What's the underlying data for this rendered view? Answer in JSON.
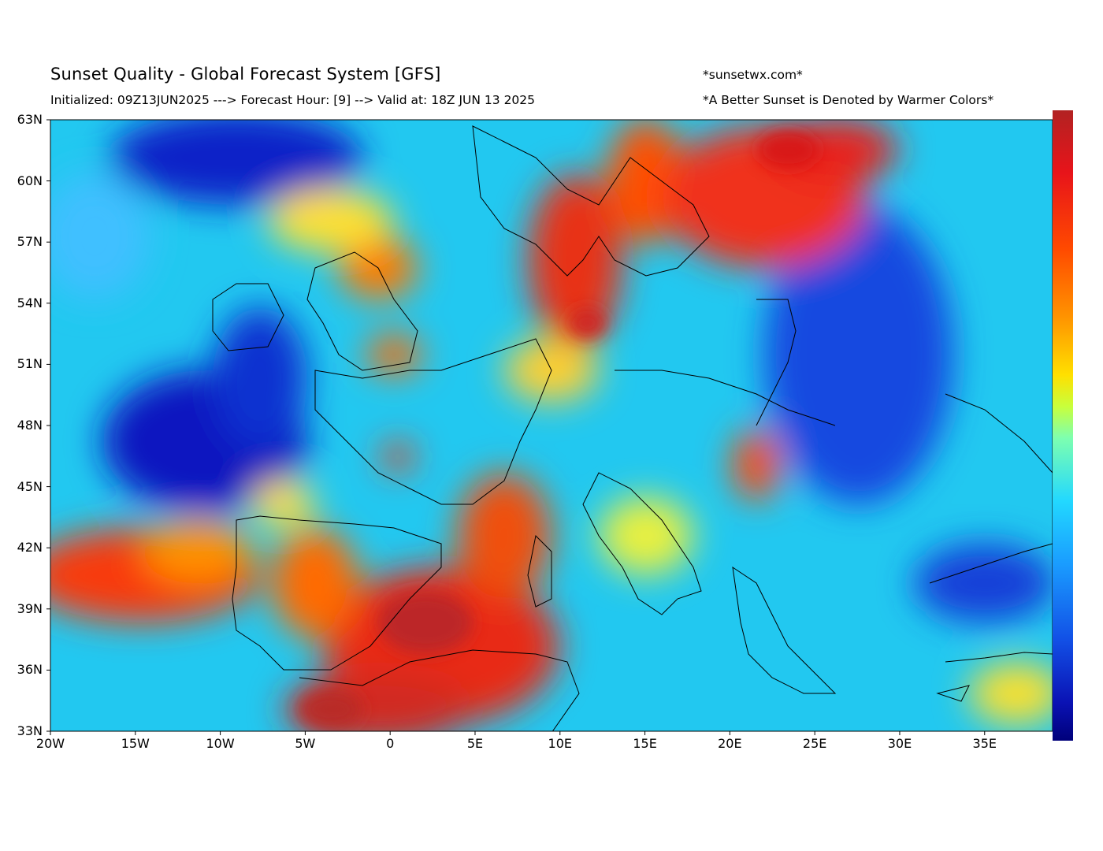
{
  "header": {
    "title": "Sunset Quality - Global Forecast System [GFS]",
    "subtitle": "Initialized: 09Z13JUN2025 ---> Forecast Hour: [9] --> Valid at: 18Z  JUN 13 2025",
    "site": "*sunsetwx.com*",
    "note": "*A Better Sunset is Denoted by Warmer Colors*"
  },
  "map": {
    "lon_range": [
      -20,
      39
    ],
    "lat_range": [
      33,
      63
    ],
    "lat_ticks": [
      "63N",
      "60N",
      "57N",
      "54N",
      "51N",
      "48N",
      "45N",
      "42N",
      "39N",
      "36N",
      "33N"
    ],
    "lon_ticks": [
      "20W",
      "15W",
      "10W",
      "5W",
      "0",
      "5E",
      "10E",
      "15E",
      "20E",
      "25E",
      "30E",
      "35E"
    ]
  },
  "colorbar": {
    "orientation": "vertical",
    "top_color": "#b22222",
    "bottom_color": "#00007a",
    "meaning": "warm = better sunset"
  }
}
